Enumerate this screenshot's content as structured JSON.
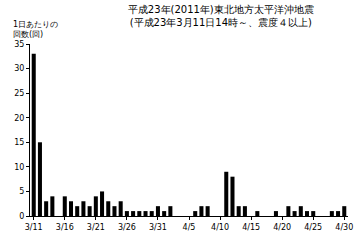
{
  "chart_data": {
    "type": "bar",
    "title": "平成23年(2011年)東北地方太平洋沖地震\n(平成23年3月11日14時～、震度４以上)",
    "y_label": "1日あたりの\n回数(回)",
    "categories": [
      "3/11",
      null,
      null,
      null,
      null,
      "3/16",
      null,
      null,
      null,
      null,
      "3/21",
      null,
      null,
      null,
      null,
      "3/26",
      null,
      null,
      null,
      null,
      "3/31",
      null,
      null,
      null,
      null,
      "4/5",
      null,
      null,
      null,
      null,
      "4/10",
      null,
      null,
      null,
      null,
      "4/15",
      null,
      null,
      null,
      null,
      "4/20",
      null,
      null,
      null,
      null,
      "4/25",
      null,
      null,
      null,
      null,
      "4/30"
    ],
    "values": [
      33,
      15,
      3,
      4,
      0,
      4,
      3,
      2,
      3,
      2,
      4,
      5,
      3,
      2,
      3,
      1,
      1,
      1,
      1,
      1,
      2,
      1,
      2,
      0,
      0,
      0,
      1,
      2,
      2,
      0,
      0,
      9,
      8,
      2,
      2,
      0,
      1,
      0,
      0,
      1,
      0,
      2,
      1,
      2,
      1,
      1,
      0,
      0,
      1,
      1,
      2
    ],
    "color": "#000000",
    "ylim": [
      0,
      35
    ],
    "yticks": [
      0,
      5,
      10,
      15,
      20,
      25,
      30,
      35
    ],
    "grid": false
  }
}
